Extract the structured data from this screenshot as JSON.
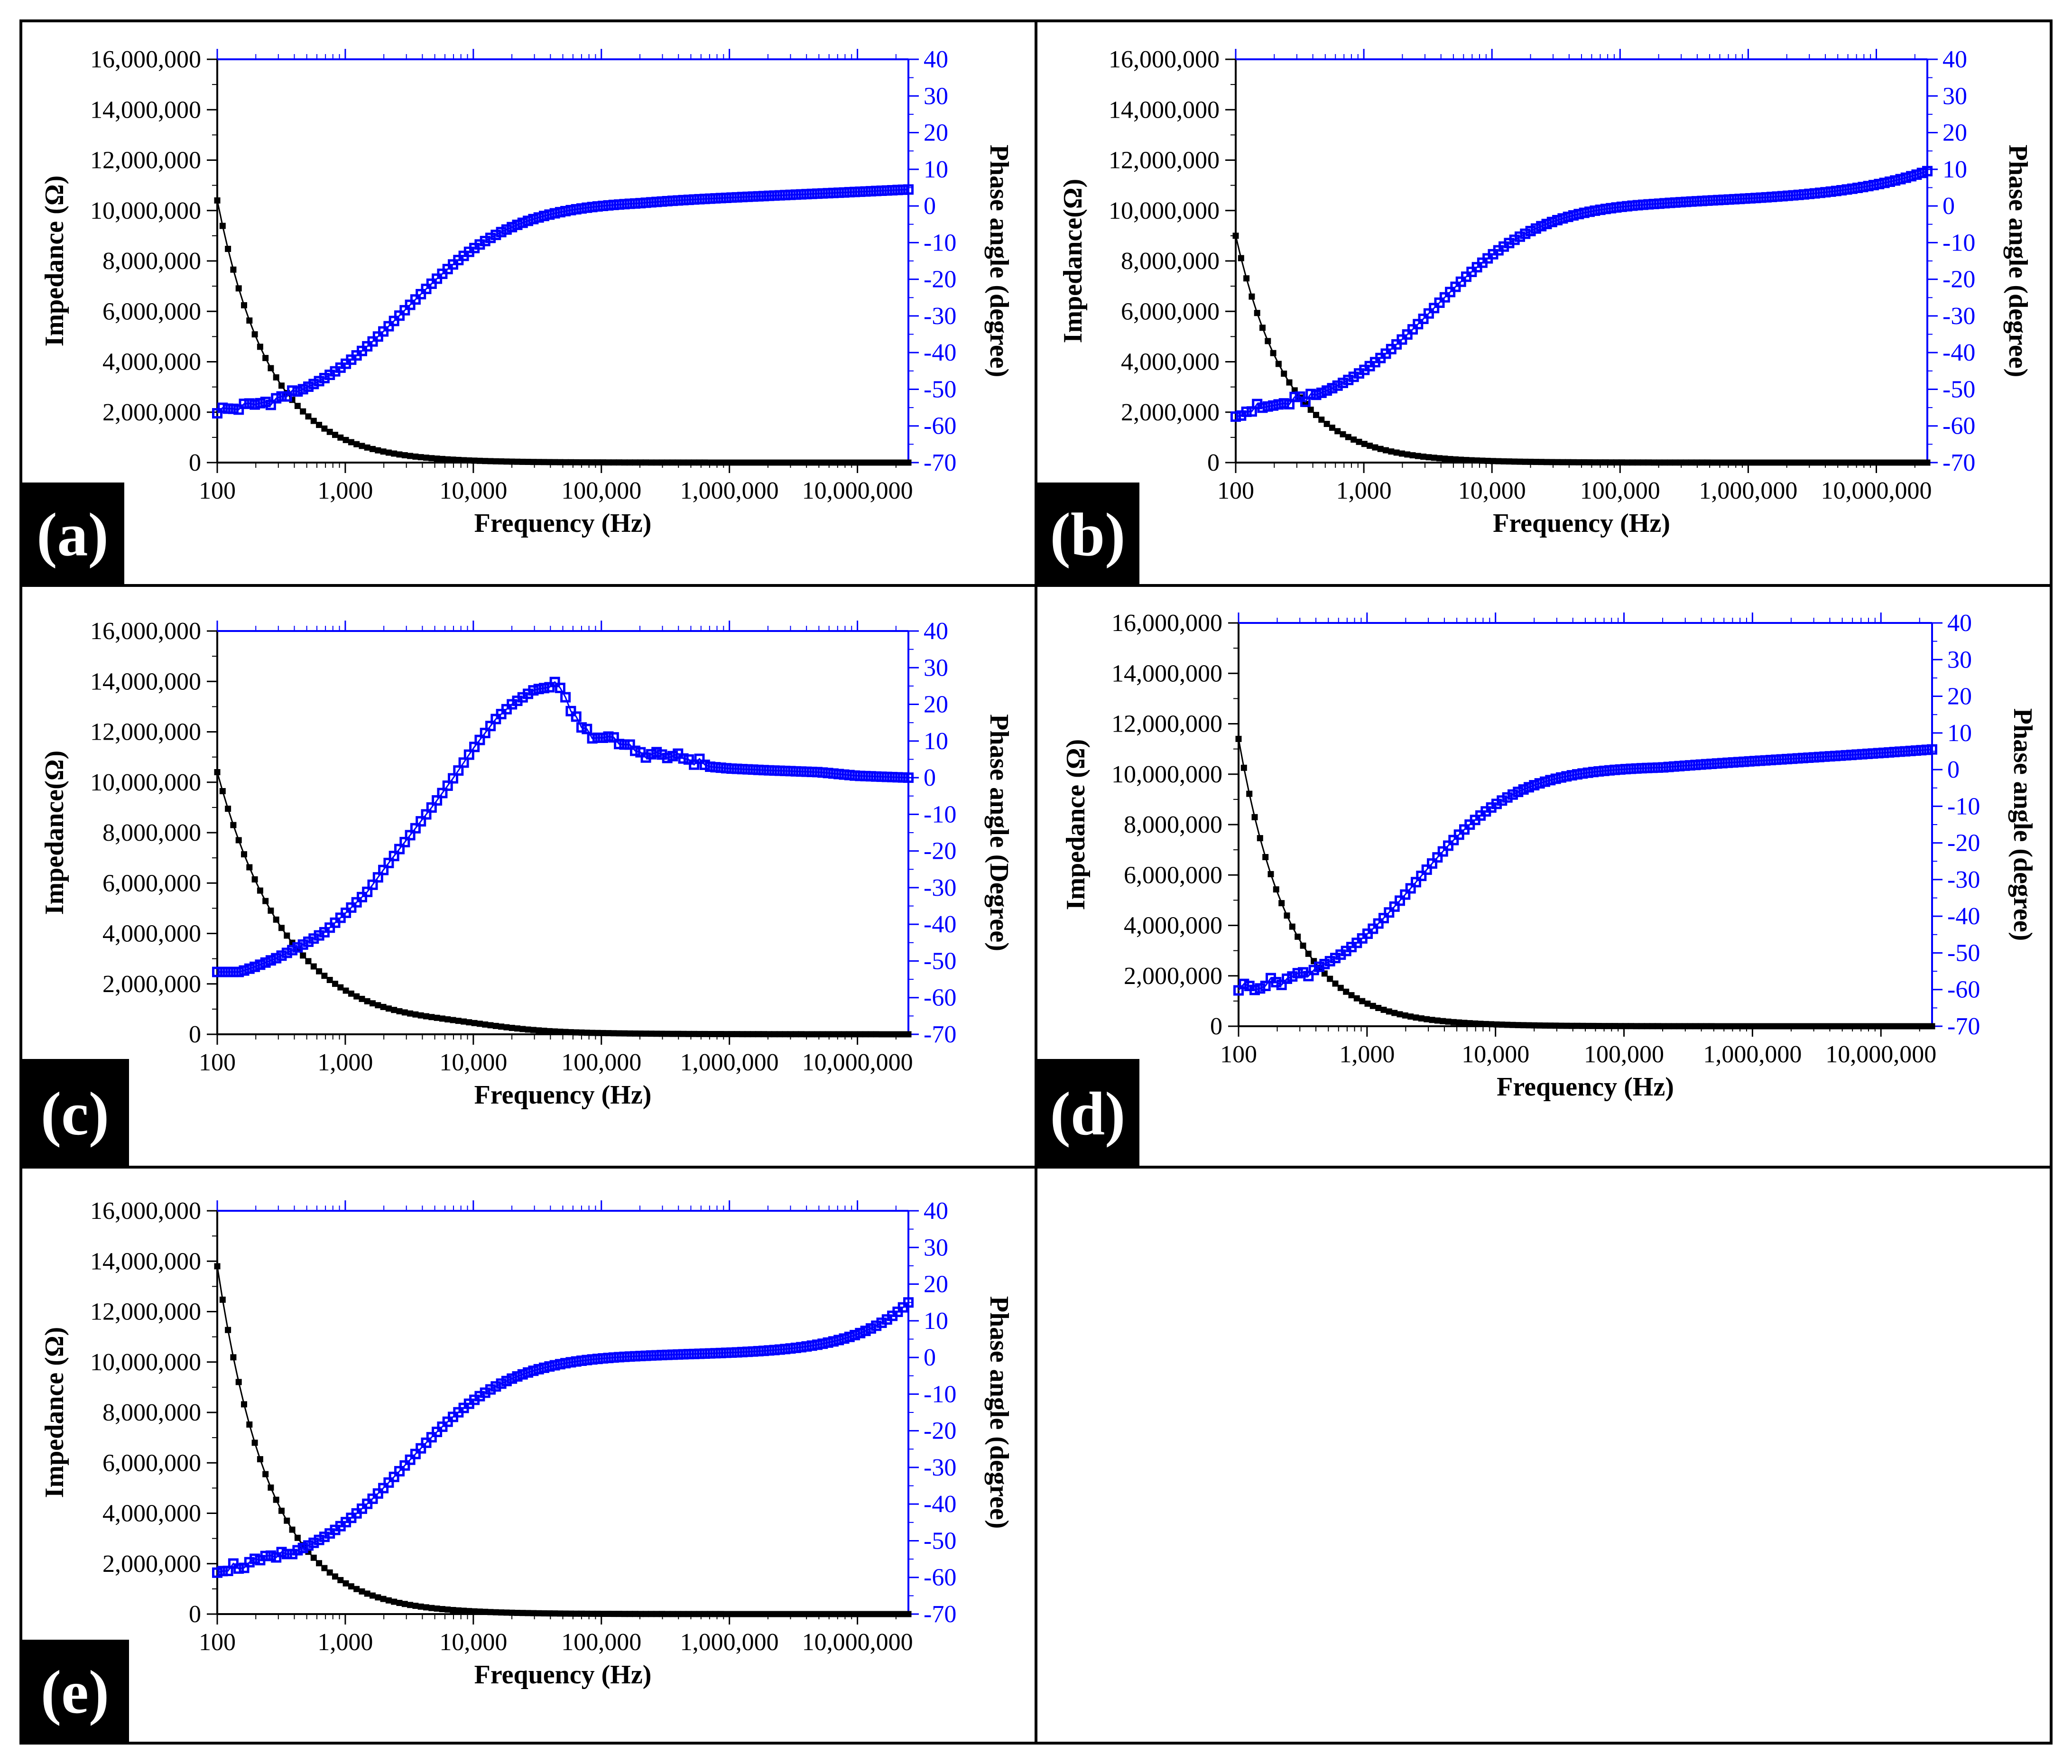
{
  "figure": {
    "colors": {
      "impedance": "#000000",
      "phase": "#0000ff",
      "frame": "#000000",
      "label_bg": "#000000",
      "label_text": "#ffffff"
    },
    "x_ticks": [
      "100",
      "1,000",
      "10,000",
      "100,000",
      "1,000,000",
      "10,000,000"
    ],
    "y_left_ticks": [
      "0",
      "2,000,000",
      "4,000,000",
      "6,000,000",
      "8,000,000",
      "10,000,000",
      "12,000,000",
      "14,000,000",
      "16,000,000"
    ],
    "y_right_ticks": [
      "-70",
      "-60",
      "-50",
      "-40",
      "-30",
      "-20",
      "-10",
      "0",
      "10",
      "20",
      "30",
      "40"
    ]
  },
  "chart_data": [
    {
      "id": "a",
      "type": "scatter",
      "label": "(a)",
      "xlabel": "Frequency (Hz)",
      "ylabel_left": "Impedance (Ω)",
      "ylabel_right": "Phase angle (degree)",
      "x_scale": "log",
      "xlim": [
        100,
        25000000
      ],
      "ylim_left": [
        0,
        16000000
      ],
      "ylim_right": [
        -70,
        40
      ],
      "series": [
        {
          "name": "Impedance",
          "axis": "left",
          "color": "#000000",
          "model": "power",
          "z0": 10400000,
          "alpha": 1.06,
          "bump": 0
        },
        {
          "name": "Phase angle",
          "axis": "right",
          "color": "#0000ff",
          "model": "sigmoid",
          "low": -57.5,
          "high": 1.5,
          "fc": 3000,
          "width": 0.42,
          "end": 4.5,
          "tail_k": 0.3,
          "noise_low": 1.2
        }
      ]
    },
    {
      "id": "b",
      "type": "scatter",
      "label": "(b)",
      "xlabel": "Frequency (Hz)",
      "ylabel_left": "Impedance(Ω)",
      "ylabel_right": "Phase angle (degree)",
      "x_scale": "log",
      "xlim": [
        100,
        25000000
      ],
      "ylim_left": [
        0,
        16000000
      ],
      "ylim_right": [
        -70,
        40
      ],
      "series": [
        {
          "name": "Impedance",
          "axis": "left",
          "color": "#000000",
          "model": "power",
          "z0": 9000000,
          "alpha": 1.08,
          "bump": 0
        },
        {
          "name": "Phase angle",
          "axis": "right",
          "color": "#0000ff",
          "model": "sigmoid",
          "low": -57.5,
          "high": 1.5,
          "fc": 3500,
          "width": 0.42,
          "end": 9.5,
          "tail_k": 3.0,
          "noise_low": 1.5
        }
      ]
    },
    {
      "id": "c",
      "type": "scatter",
      "label": "(c)",
      "xlabel": "Frequency (Hz)",
      "ylabel_left": "Impedance(Ω)",
      "ylabel_right": "Phase angle (Degree)",
      "x_scale": "log",
      "xlim": [
        100,
        25000000
      ],
      "ylim_left": [
        0,
        16000000
      ],
      "ylim_right": [
        -70,
        40
      ],
      "series": [
        {
          "name": "Impedance",
          "axis": "left",
          "color": "#000000",
          "model": "power",
          "z0": 10400000,
          "alpha": 0.78,
          "bump": 1
        },
        {
          "name": "Phase angle",
          "axis": "right",
          "color": "#0000ff",
          "model": "points",
          "x": [
            100,
            150,
            200,
            300,
            500,
            700,
            1000,
            1500,
            2000,
            3000,
            5000,
            7000,
            10000,
            15000,
            20000,
            30000,
            45000,
            55000,
            70000,
            100000,
            150000,
            200000,
            300000,
            500000,
            700000,
            1000000,
            2000000,
            5000000,
            10000000,
            25000000
          ],
          "y": [
            -53,
            -53,
            -51.5,
            -49,
            -45,
            -42,
            -37,
            -31,
            -25,
            -17,
            -7,
            0,
            8,
            16,
            20,
            24,
            25,
            20,
            13,
            11,
            9,
            7,
            6,
            5,
            3,
            2.5,
            2,
            1.5,
            0.5,
            0
          ]
        }
      ]
    },
    {
      "id": "d",
      "type": "scatter",
      "label": "(d)",
      "xlabel": "Frequency (Hz)",
      "ylabel_left": "Impedance (Ω)",
      "ylabel_right": "Phase angle (degree)",
      "x_scale": "log",
      "xlim": [
        100,
        25000000
      ],
      "ylim_left": [
        0,
        16000000
      ],
      "ylim_right": [
        -70,
        40
      ],
      "series": [
        {
          "name": "Impedance",
          "axis": "left",
          "color": "#000000",
          "model": "power",
          "z0": 11400000,
          "alpha": 1.1,
          "bump": 0
        },
        {
          "name": "Phase angle",
          "axis": "right",
          "color": "#0000ff",
          "model": "sigmoid",
          "low": -61,
          "high": 1,
          "fc": 2500,
          "width": 0.38,
          "end": 5.5,
          "tail_k": 0.3,
          "noise_low": 1.3
        }
      ]
    },
    {
      "id": "e",
      "type": "scatter",
      "label": "(e)",
      "xlabel": "Frequency (Hz)",
      "ylabel_left": "Impedance (Ω)",
      "ylabel_right": "Phase angle (degree)",
      "x_scale": "log",
      "xlim": [
        100,
        25000000
      ],
      "ylim_left": [
        0,
        16000000
      ],
      "ylim_right": [
        -70,
        40
      ],
      "series": [
        {
          "name": "Impedance",
          "axis": "left",
          "color": "#000000",
          "model": "power",
          "z0": 13800000,
          "alpha": 1.05,
          "bump": 0
        },
        {
          "name": "Phase angle",
          "axis": "right",
          "color": "#0000ff",
          "model": "sigmoid",
          "low": -59,
          "high": 1,
          "fc": 3000,
          "width": 0.4,
          "end": 15,
          "tail_k": 5.0,
          "noise_low": 1.3
        }
      ]
    }
  ]
}
